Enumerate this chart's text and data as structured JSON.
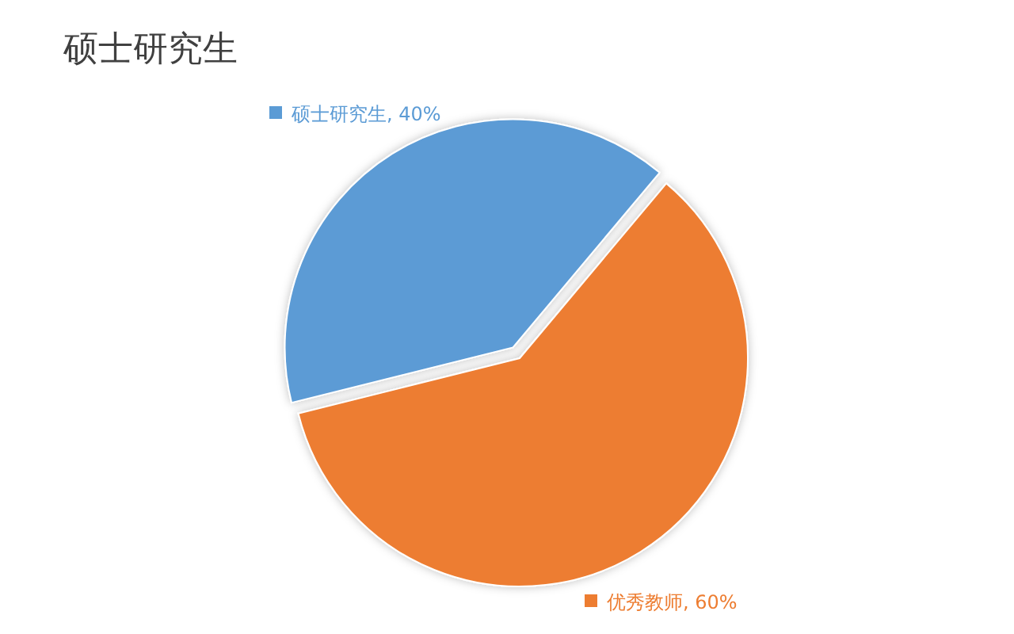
{
  "chart_data": {
    "type": "pie",
    "title": "硕士研究生",
    "categories": [
      "硕士研究生",
      "优秀教师"
    ],
    "values": [
      40,
      60
    ],
    "colors": [
      "#5b9bd5",
      "#ed7d31"
    ],
    "value_labels": [
      ", 40%",
      ", 60%"
    ],
    "legend": "bottom left"
  }
}
